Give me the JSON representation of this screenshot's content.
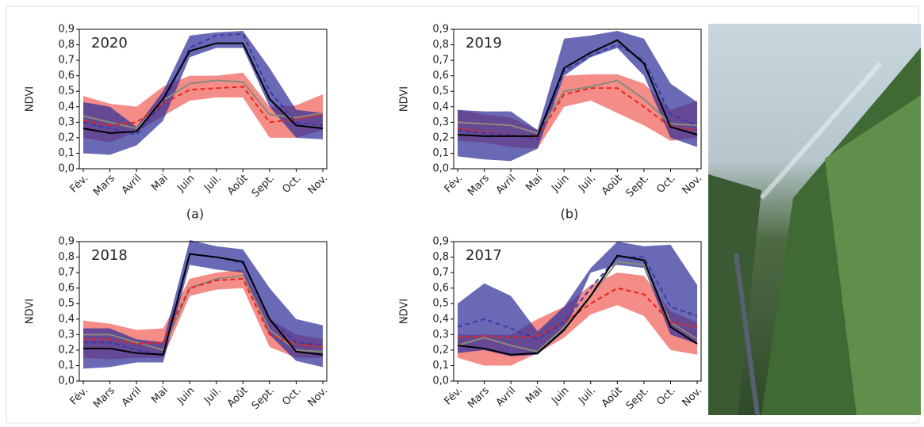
{
  "chart_data": [
    {
      "type": "line",
      "title": "2020",
      "caption": "(a)",
      "ylabel": "NDVI",
      "categories": [
        "Fév.",
        "Mars",
        "Avril",
        "Mai",
        "Juin",
        "Juil.",
        "Août",
        "Sept.",
        "Oct.",
        "Nov."
      ],
      "ylim": [
        0,
        0.9
      ],
      "yticks": [
        {
          "value": 0,
          "label": "0,0"
        },
        {
          "value": 0.1,
          "label": "0,1"
        },
        {
          "value": 0.2,
          "label": "0,2"
        },
        {
          "value": 0.3,
          "label": "0,3"
        },
        {
          "value": 0.4,
          "label": "0,4"
        },
        {
          "value": 0.5,
          "label": "0,5"
        },
        {
          "value": 0.6,
          "label": "0,6"
        },
        {
          "value": 0.7,
          "label": "0,7"
        },
        {
          "value": 0.8,
          "label": "0,8"
        },
        {
          "value": 0.9,
          "label": "0,9"
        }
      ],
      "bands": [
        {
          "color": "#f0605a",
          "upper": [
            0.47,
            0.42,
            0.4,
            0.53,
            0.6,
            0.6,
            0.62,
            0.4,
            0.41,
            0.48
          ],
          "lower": [
            0.2,
            0.17,
            0.24,
            0.34,
            0.44,
            0.46,
            0.46,
            0.2,
            0.2,
            0.25
          ]
        },
        {
          "color": "#2f2f9a",
          "upper": [
            0.43,
            0.4,
            0.27,
            0.5,
            0.86,
            0.88,
            0.89,
            0.65,
            0.38,
            0.36
          ],
          "lower": [
            0.1,
            0.09,
            0.15,
            0.31,
            0.72,
            0.78,
            0.78,
            0.4,
            0.2,
            0.19
          ]
        }
      ],
      "series": [
        {
          "color": "#8a8a7a",
          "dashed": false,
          "values": [
            0.34,
            0.3,
            0.26,
            0.44,
            0.55,
            0.57,
            0.56,
            0.35,
            0.33,
            0.36
          ]
        },
        {
          "color": "#e8241c",
          "dashed": true,
          "values": [
            0.31,
            0.28,
            0.3,
            0.42,
            0.51,
            0.52,
            0.53,
            0.3,
            0.32,
            0.35
          ]
        },
        {
          "color": "#3a3aa8",
          "dashed": true,
          "values": [
            0.3,
            0.26,
            0.22,
            0.42,
            0.78,
            0.86,
            0.87,
            0.5,
            0.3,
            0.28
          ]
        },
        {
          "color": "#000000",
          "dashed": false,
          "values": [
            0.26,
            0.23,
            0.24,
            0.45,
            0.76,
            0.81,
            0.81,
            0.45,
            0.28,
            0.26
          ]
        }
      ]
    },
    {
      "type": "line",
      "title": "2019",
      "caption": "(b)",
      "ylabel": "NDVI",
      "categories": [
        "Fév.",
        "Mars",
        "Avril",
        "Mai",
        "Juin",
        "Juil.",
        "Août",
        "Sept.",
        "Oct.",
        "Nov."
      ],
      "ylim": [
        0,
        0.9
      ],
      "yticks": [
        {
          "value": 0,
          "label": "0,0"
        },
        {
          "value": 0.1,
          "label": "0,1"
        },
        {
          "value": 0.2,
          "label": "0,2"
        },
        {
          "value": 0.3,
          "label": "0,3"
        },
        {
          "value": 0.4,
          "label": "0,4"
        },
        {
          "value": 0.5,
          "label": "0,5"
        },
        {
          "value": 0.6,
          "label": "0,6"
        },
        {
          "value": 0.7,
          "label": "0,7"
        },
        {
          "value": 0.8,
          "label": "0,8"
        },
        {
          "value": 0.9,
          "label": "0,9"
        }
      ],
      "bands": [
        {
          "color": "#f0605a",
          "upper": [
            0.38,
            0.35,
            0.33,
            0.25,
            0.6,
            0.61,
            0.61,
            0.55,
            0.38,
            0.44
          ],
          "lower": [
            0.18,
            0.17,
            0.14,
            0.13,
            0.4,
            0.44,
            0.36,
            0.28,
            0.18,
            0.2
          ]
        },
        {
          "color": "#2f2f9a",
          "upper": [
            0.38,
            0.37,
            0.37,
            0.25,
            0.84,
            0.86,
            0.89,
            0.84,
            0.55,
            0.43
          ],
          "lower": [
            0.08,
            0.06,
            0.05,
            0.13,
            0.6,
            0.72,
            0.78,
            0.6,
            0.2,
            0.14
          ]
        }
      ],
      "series": [
        {
          "color": "#8a8a7a",
          "dashed": false,
          "values": [
            0.3,
            0.29,
            0.28,
            0.23,
            0.5,
            0.53,
            0.57,
            0.45,
            0.29,
            0.28
          ]
        },
        {
          "color": "#e8241c",
          "dashed": true,
          "values": [
            0.26,
            0.24,
            0.22,
            0.2,
            0.48,
            0.52,
            0.52,
            0.4,
            0.27,
            0.25
          ]
        },
        {
          "color": "#3a3aa8",
          "dashed": true,
          "values": [
            0.25,
            0.23,
            0.22,
            0.19,
            0.63,
            0.73,
            0.8,
            0.7,
            0.35,
            0.28
          ]
        },
        {
          "color": "#000000",
          "dashed": false,
          "values": [
            0.22,
            0.21,
            0.21,
            0.21,
            0.65,
            0.75,
            0.83,
            0.68,
            0.27,
            0.22
          ]
        }
      ]
    },
    {
      "type": "line",
      "title": "2018",
      "ylabel": "NDVI",
      "categories": [
        "Fév.",
        "Mars",
        "Avril",
        "Mai",
        "Juin",
        "Juil.",
        "Août",
        "Sept.",
        "Oct.",
        "Nov."
      ],
      "ylim": [
        0,
        0.9
      ],
      "yticks": [
        {
          "value": 0,
          "label": "0,0"
        },
        {
          "value": 0.1,
          "label": "0,1"
        },
        {
          "value": 0.2,
          "label": "0,2"
        },
        {
          "value": 0.3,
          "label": "0,3"
        },
        {
          "value": 0.4,
          "label": "0,4"
        },
        {
          "value": 0.5,
          "label": "0,5"
        },
        {
          "value": 0.6,
          "label": "0,6"
        },
        {
          "value": 0.7,
          "label": "0,7"
        },
        {
          "value": 0.8,
          "label": "0,8"
        },
        {
          "value": 0.9,
          "label": "0,9"
        }
      ],
      "bands": [
        {
          "color": "#f0605a",
          "upper": [
            0.39,
            0.37,
            0.33,
            0.34,
            0.66,
            0.7,
            0.72,
            0.4,
            0.3,
            0.27
          ],
          "lower": [
            0.15,
            0.14,
            0.15,
            0.15,
            0.55,
            0.59,
            0.6,
            0.22,
            0.15,
            0.15
          ]
        },
        {
          "color": "#2f2f9a",
          "upper": [
            0.34,
            0.34,
            0.27,
            0.25,
            0.91,
            0.87,
            0.85,
            0.6,
            0.4,
            0.36
          ],
          "lower": [
            0.08,
            0.09,
            0.12,
            0.12,
            0.75,
            0.72,
            0.7,
            0.3,
            0.13,
            0.09
          ]
        }
      ],
      "series": [
        {
          "color": "#8a8a7a",
          "dashed": false,
          "values": [
            0.3,
            0.3,
            0.25,
            0.2,
            0.6,
            0.66,
            0.68,
            0.33,
            0.2,
            0.19
          ]
        },
        {
          "color": "#e8241c",
          "dashed": true,
          "values": [
            0.27,
            0.27,
            0.24,
            0.25,
            0.6,
            0.65,
            0.66,
            0.3,
            0.24,
            0.22
          ]
        },
        {
          "color": "#3a3aa8",
          "dashed": true,
          "values": [
            0.25,
            0.25,
            0.2,
            0.17,
            0.82,
            0.8,
            0.76,
            0.4,
            0.25,
            0.23
          ]
        },
        {
          "color": "#000000",
          "dashed": false,
          "values": [
            0.21,
            0.21,
            0.18,
            0.17,
            0.82,
            0.8,
            0.77,
            0.4,
            0.19,
            0.17
          ]
        }
      ]
    },
    {
      "type": "line",
      "title": "2017",
      "ylabel": "NDVI",
      "categories": [
        "Fév.",
        "Mars",
        "Avril",
        "Mai",
        "Juin",
        "Juil.",
        "Août",
        "Sept.",
        "Oct.",
        "Nov."
      ],
      "ylim": [
        0,
        0.9
      ],
      "yticks": [
        {
          "value": 0,
          "label": "0,0"
        },
        {
          "value": 0.1,
          "label": "0,1"
        },
        {
          "value": 0.2,
          "label": "0,2"
        },
        {
          "value": 0.3,
          "label": "0,3"
        },
        {
          "value": 0.4,
          "label": "0,4"
        },
        {
          "value": 0.5,
          "label": "0,5"
        },
        {
          "value": 0.6,
          "label": "0,6"
        },
        {
          "value": 0.7,
          "label": "0,7"
        },
        {
          "value": 0.8,
          "label": "0,8"
        },
        {
          "value": 0.9,
          "label": "0,9"
        }
      ],
      "bands": [
        {
          "color": "#f0605a",
          "upper": [
            0.3,
            0.3,
            0.3,
            0.4,
            0.48,
            0.62,
            0.7,
            0.68,
            0.45,
            0.38
          ],
          "lower": [
            0.15,
            0.1,
            0.1,
            0.18,
            0.28,
            0.43,
            0.49,
            0.42,
            0.2,
            0.17
          ]
        },
        {
          "color": "#2f2f9a",
          "upper": [
            0.5,
            0.63,
            0.55,
            0.32,
            0.48,
            0.73,
            0.9,
            0.87,
            0.88,
            0.62
          ],
          "lower": [
            0.18,
            0.2,
            0.16,
            0.17,
            0.32,
            0.7,
            0.75,
            0.73,
            0.3,
            0.24
          ]
        }
      ],
      "series": [
        {
          "color": "#8a8a7a",
          "dashed": false,
          "values": [
            0.23,
            0.28,
            0.23,
            0.19,
            0.35,
            0.55,
            0.77,
            0.75,
            0.38,
            0.27
          ]
        },
        {
          "color": "#e8241c",
          "dashed": true,
          "values": [
            0.28,
            0.29,
            0.28,
            0.29,
            0.38,
            0.5,
            0.6,
            0.56,
            0.38,
            0.35
          ]
        },
        {
          "color": "#3a3aa8",
          "dashed": true,
          "values": [
            0.35,
            0.4,
            0.34,
            0.27,
            0.38,
            0.6,
            0.8,
            0.8,
            0.48,
            0.42
          ]
        },
        {
          "color": "#000000",
          "dashed": false,
          "values": [
            0.23,
            0.21,
            0.17,
            0.18,
            0.33,
            0.55,
            0.81,
            0.78,
            0.35,
            0.24
          ]
        }
      ]
    }
  ]
}
